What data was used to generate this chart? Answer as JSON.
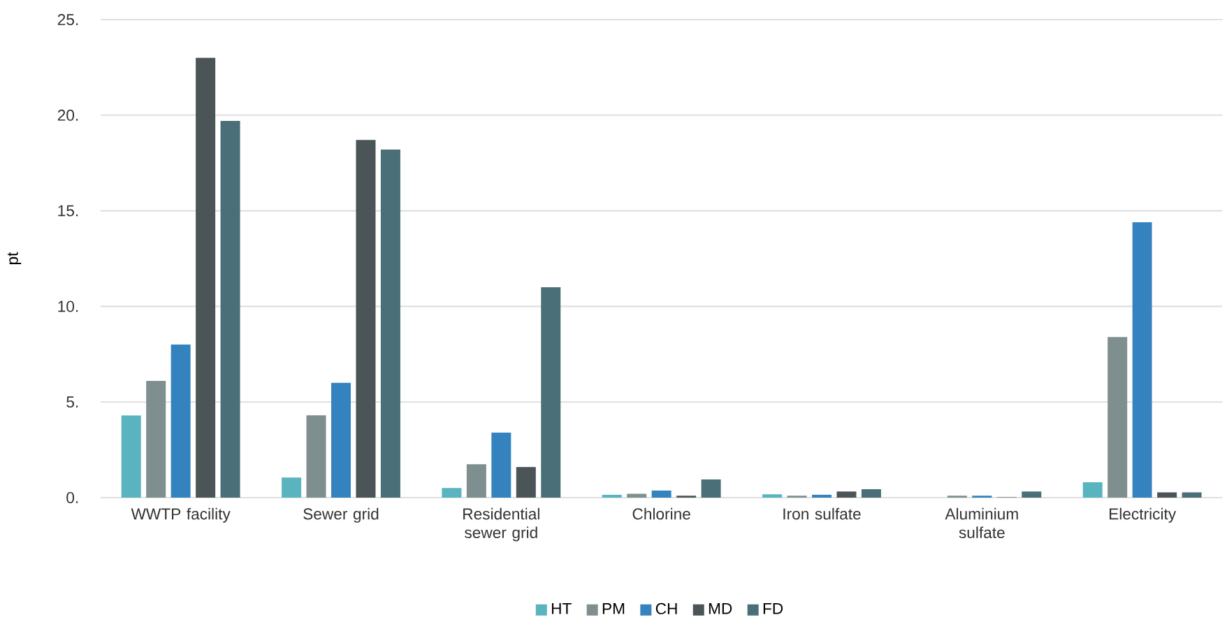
{
  "chart_data": {
    "type": "bar",
    "ylabel": "pt",
    "categories": [
      "WWTP facility",
      "Sewer grid",
      "Residential sewer grid",
      "Chlorine",
      "Iron sulfate",
      "Aluminium sulfate",
      "Electricity"
    ],
    "series": [
      {
        "name": "HT",
        "color": "#5ab4bf",
        "values": [
          4.3,
          1.05,
          0.5,
          0.15,
          0.17,
          0,
          0.8
        ]
      },
      {
        "name": "PM",
        "color": "#7f8e8f",
        "values": [
          6.1,
          4.3,
          1.75,
          0.2,
          0.1,
          0.1,
          8.4
        ]
      },
      {
        "name": "CH",
        "color": "#3482be",
        "values": [
          8.0,
          6.0,
          3.4,
          0.37,
          0.15,
          0.1,
          14.4
        ]
      },
      {
        "name": "MD",
        "color": "#4b5457",
        "values": [
          23.0,
          18.7,
          1.6,
          0.1,
          0.32,
          0.02,
          0.27
        ]
      },
      {
        "name": "FD",
        "color": "#4a6f78",
        "values": [
          19.7,
          18.2,
          11.0,
          0.95,
          0.44,
          0.32,
          0.27
        ]
      }
    ],
    "ylim": [
      0,
      25
    ],
    "yticks": [
      {
        "value": 0,
        "label": "0."
      },
      {
        "value": 5,
        "label": "5."
      },
      {
        "value": 10,
        "label": "10."
      },
      {
        "value": 15,
        "label": "15."
      },
      {
        "value": 20,
        "label": "20."
      },
      {
        "value": 25,
        "label": "25."
      }
    ],
    "grid": "y",
    "legend": "bottom"
  }
}
